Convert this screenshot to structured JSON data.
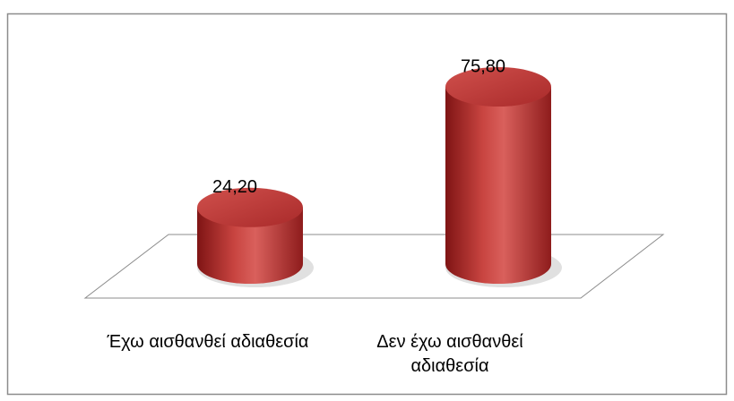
{
  "chart_data": {
    "type": "bar",
    "categories": [
      "Έχω αισθανθεί αδιαθεσία",
      "Δεν έχω αισθανθεί αδιαθεσία"
    ],
    "values": [
      24.2,
      75.8
    ],
    "value_labels": [
      "24,20",
      "75,80"
    ],
    "color": "#c0393a"
  }
}
